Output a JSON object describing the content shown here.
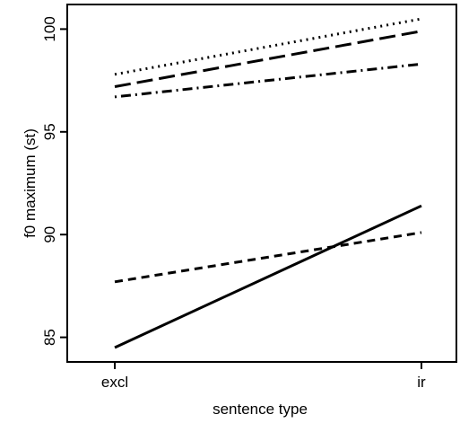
{
  "chart_data": {
    "type": "line",
    "xlabel": "sentence type",
    "ylabel": "f0 maximum (st)",
    "categories": [
      "excl",
      "ir"
    ],
    "y_ticks": [
      "85",
      "90",
      "95",
      "100"
    ],
    "ylim": [
      83.8,
      101.2
    ],
    "grid": false,
    "series": [
      {
        "values": [
          97.8,
          100.5
        ],
        "linestyle": "dotted"
      },
      {
        "values": [
          97.2,
          99.9
        ],
        "linestyle": "longdash"
      },
      {
        "values": [
          96.7,
          98.3
        ],
        "linestyle": "dotdash"
      },
      {
        "values": [
          87.7,
          90.1
        ],
        "linestyle": "dashed"
      },
      {
        "values": [
          84.5,
          91.4
        ],
        "linestyle": "solid"
      }
    ],
    "colors": {
      "line": "#000000",
      "frame": "#000000",
      "background": "#ffffff"
    }
  }
}
